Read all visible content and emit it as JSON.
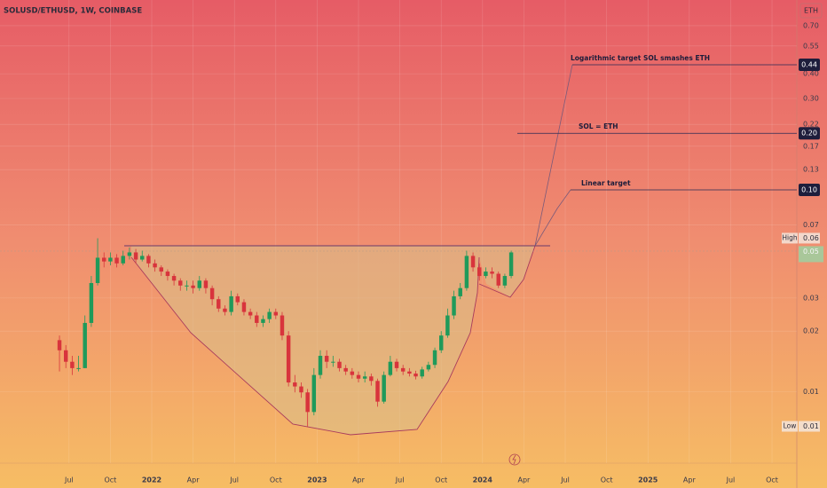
{
  "chart_data": {
    "type": "candlestick",
    "title": "SOLUSD/ETHUSD, 1W, COINBASE",
    "currency": "ETH",
    "log_scale": true,
    "grid": true,
    "up_color": "#1f9a5a",
    "down_color": "#d8343c",
    "xlim": [
      -18.7,
      231.8
    ],
    "ylim": [
      0.0043,
      0.944
    ],
    "xticks": [
      {
        "value": 3,
        "label": "Jul"
      },
      {
        "value": 16,
        "label": "Oct"
      },
      {
        "value": 29,
        "label": "2022"
      },
      {
        "value": 42,
        "label": "Apr"
      },
      {
        "value": 55,
        "label": "Jul"
      },
      {
        "value": 68,
        "label": "Oct"
      },
      {
        "value": 81,
        "label": "2023"
      },
      {
        "value": 94,
        "label": "Apr"
      },
      {
        "value": 107,
        "label": "Jul"
      },
      {
        "value": 120,
        "label": "Oct"
      },
      {
        "value": 133,
        "label": "2024"
      },
      {
        "value": 146,
        "label": "Apr"
      },
      {
        "value": 159,
        "label": "Jul"
      },
      {
        "value": 172,
        "label": "Oct"
      },
      {
        "value": 185,
        "label": "2025"
      },
      {
        "value": 198,
        "label": "Apr"
      },
      {
        "value": 211,
        "label": "Jul"
      },
      {
        "value": 224,
        "label": "Oct"
      }
    ],
    "yticks": [
      {
        "value": 0.7,
        "label": "0.70"
      },
      {
        "value": 0.553,
        "label": "0.55"
      },
      {
        "value": 0.4,
        "label": "0.40"
      },
      {
        "value": 0.3,
        "label": "0.30"
      },
      {
        "value": 0.222,
        "label": "0.22"
      },
      {
        "value": 0.172,
        "label": "0.17"
      },
      {
        "value": 0.131,
        "label": "0.13"
      },
      {
        "value": 0.069,
        "label": "0.07"
      },
      {
        "value": 0.0294,
        "label": "0.03"
      },
      {
        "value": 0.02,
        "label": "0.02"
      },
      {
        "value": 0.0099,
        "label": "0.01"
      }
    ],
    "x": [
      0,
      2,
      4,
      6,
      8,
      10,
      12,
      14,
      16,
      18,
      20,
      22,
      24,
      26,
      28,
      30,
      32,
      34,
      36,
      38,
      40,
      42,
      44,
      46,
      48,
      50,
      52,
      54,
      56,
      58,
      60,
      62,
      64,
      66,
      68,
      70,
      72,
      74,
      76,
      78,
      80,
      82,
      84,
      86,
      88,
      90,
      92,
      94,
      96,
      98,
      100,
      102,
      104,
      106,
      108,
      110,
      112,
      114,
      116,
      118,
      120,
      122,
      124,
      126,
      128,
      130,
      132,
      134,
      136,
      138,
      140,
      142
    ],
    "open": [
      0.018,
      0.016,
      0.014,
      0.013,
      0.013,
      0.022,
      0.035,
      0.047,
      0.045,
      0.047,
      0.044,
      0.048,
      0.05,
      0.046,
      0.048,
      0.044,
      0.042,
      0.04,
      0.038,
      0.036,
      0.034,
      0.034,
      0.033,
      0.036,
      0.033,
      0.029,
      0.026,
      0.025,
      0.03,
      0.028,
      0.025,
      0.024,
      0.022,
      0.023,
      0.025,
      0.024,
      0.019,
      0.011,
      0.0105,
      0.0098,
      0.0078,
      0.012,
      0.015,
      0.014,
      0.014,
      0.013,
      0.0125,
      0.012,
      0.0115,
      0.0118,
      0.0112,
      0.0088,
      0.012,
      0.014,
      0.013,
      0.0125,
      0.0122,
      0.0118,
      0.0128,
      0.0135,
      0.016,
      0.019,
      0.024,
      0.03,
      0.033,
      0.048,
      0.042,
      0.038,
      0.04,
      0.039,
      0.034,
      0.038
    ],
    "high": [
      0.019,
      0.017,
      0.015,
      0.015,
      0.024,
      0.038,
      0.059,
      0.05,
      0.05,
      0.049,
      0.051,
      0.053,
      0.052,
      0.051,
      0.049,
      0.046,
      0.043,
      0.041,
      0.039,
      0.037,
      0.036,
      0.036,
      0.038,
      0.037,
      0.034,
      0.03,
      0.027,
      0.032,
      0.031,
      0.029,
      0.026,
      0.025,
      0.024,
      0.026,
      0.026,
      0.025,
      0.02,
      0.012,
      0.011,
      0.0102,
      0.013,
      0.016,
      0.016,
      0.015,
      0.0145,
      0.0135,
      0.013,
      0.0125,
      0.0125,
      0.0122,
      0.0115,
      0.0125,
      0.015,
      0.0145,
      0.0135,
      0.013,
      0.0126,
      0.0132,
      0.014,
      0.0165,
      0.02,
      0.026,
      0.032,
      0.035,
      0.051,
      0.05,
      0.044,
      0.042,
      0.042,
      0.04,
      0.039,
      0.051
    ],
    "low": [
      0.0125,
      0.013,
      0.012,
      0.0125,
      0.013,
      0.021,
      0.034,
      0.042,
      0.043,
      0.042,
      0.043,
      0.046,
      0.044,
      0.045,
      0.042,
      0.04,
      0.038,
      0.036,
      0.034,
      0.032,
      0.032,
      0.031,
      0.032,
      0.031,
      0.027,
      0.025,
      0.024,
      0.024,
      0.027,
      0.024,
      0.023,
      0.021,
      0.021,
      0.022,
      0.023,
      0.018,
      0.0105,
      0.0098,
      0.0092,
      0.0066,
      0.0075,
      0.0115,
      0.013,
      0.0132,
      0.0125,
      0.012,
      0.0115,
      0.011,
      0.011,
      0.0106,
      0.0083,
      0.0086,
      0.0118,
      0.0125,
      0.012,
      0.0118,
      0.0114,
      0.0115,
      0.0125,
      0.013,
      0.0155,
      0.0185,
      0.023,
      0.029,
      0.032,
      0.04,
      0.036,
      0.037,
      0.037,
      0.033,
      0.033,
      0.037
    ],
    "close": [
      0.016,
      0.014,
      0.013,
      0.013,
      0.022,
      0.035,
      0.047,
      0.045,
      0.047,
      0.044,
      0.048,
      0.05,
      0.046,
      0.048,
      0.044,
      0.042,
      0.04,
      0.038,
      0.036,
      0.034,
      0.034,
      0.033,
      0.036,
      0.033,
      0.029,
      0.026,
      0.025,
      0.03,
      0.028,
      0.025,
      0.024,
      0.022,
      0.023,
      0.025,
      0.024,
      0.019,
      0.011,
      0.0105,
      0.0098,
      0.0078,
      0.012,
      0.015,
      0.014,
      0.014,
      0.013,
      0.0125,
      0.012,
      0.0115,
      0.0118,
      0.0112,
      0.0088,
      0.012,
      0.014,
      0.013,
      0.0125,
      0.0122,
      0.0118,
      0.0128,
      0.0135,
      0.016,
      0.019,
      0.024,
      0.03,
      0.033,
      0.048,
      0.042,
      0.038,
      0.04,
      0.039,
      0.034,
      0.038,
      0.05
    ],
    "targets": [
      {
        "text": "Logarithmic target  SOL smashes ETH",
        "value": 0.444,
        "value_label": "0.44"
      },
      {
        "text": "SOL = ETH",
        "value": 0.2,
        "value_label": "0.20"
      },
      {
        "text": "Linear target",
        "value": 0.1035,
        "value_label": "0.10"
      }
    ],
    "high_marker": {
      "text": "High",
      "value": 0.059,
      "value_label": "0.06"
    },
    "low_marker": {
      "text": "Low",
      "value": 0.0066,
      "value_label": "0.01"
    },
    "last_price": {
      "value": 0.05,
      "value_label": "0.05"
    }
  }
}
